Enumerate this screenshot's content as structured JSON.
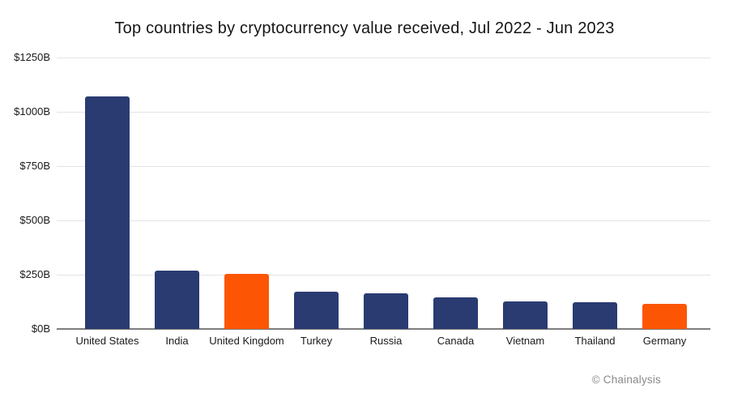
{
  "title": "Top countries by cryptocurrency value received, Jul 2022 - Jun 2023",
  "attribution": "© Chainalysis",
  "chart_data": {
    "type": "bar",
    "title": "Top countries by cryptocurrency value received, Jul 2022 - Jun 2023",
    "xlabel": "",
    "ylabel": "",
    "categories": [
      "United States",
      "India",
      "United Kingdom",
      "Turkey",
      "Russia",
      "Canada",
      "Vietnam",
      "Thailand",
      "Germany"
    ],
    "values": [
      1070,
      269,
      252,
      170,
      163,
      145,
      126,
      124,
      115
    ],
    "unit": "USD billions",
    "ylim": [
      0,
      1250
    ],
    "grid": "horizontal",
    "legend": "none",
    "y_ticks": [
      {
        "value": 0,
        "label": "$0B"
      },
      {
        "value": 250,
        "label": "$250B"
      },
      {
        "value": 500,
        "label": "$500B"
      },
      {
        "value": 750,
        "label": "$750B"
      },
      {
        "value": 1000,
        "label": "$1000B"
      },
      {
        "value": 1250,
        "label": "$1250B"
      }
    ],
    "bar_colors": [
      "navy",
      "navy",
      "orange",
      "navy",
      "navy",
      "navy",
      "navy",
      "navy",
      "orange"
    ],
    "palette": {
      "navy": "#2a3b72",
      "orange": "#fc5604"
    },
    "gridline_color": "#e4e4e4",
    "axis_line_color": "#7d7d7d",
    "text_color": "#1a1a1a",
    "attribution_color": "#8a8a8a"
  }
}
